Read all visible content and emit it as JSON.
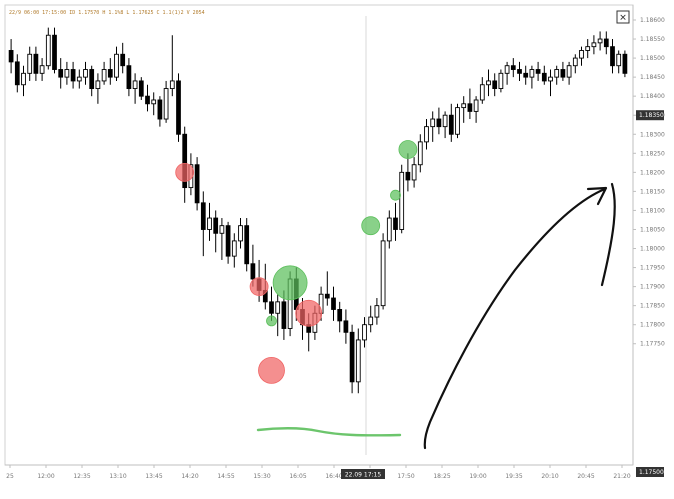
{
  "window": {
    "header_text": "22/9 06:00 17:15:00 ID 1.17570 H 1.1%8 L 1.17625 C 1.1(1)2 V 2054",
    "close_glyph": "✕"
  },
  "chart_data": {
    "type": "candlestick",
    "title": "",
    "xlabel": "",
    "ylabel": "",
    "ylim": [
      1.1745,
      1.186
    ],
    "y_ticks": [
      "1.18600",
      "1.18550",
      "1.18500",
      "1.18450",
      "1.18400",
      "1.18350",
      "1.18300",
      "1.18250",
      "1.18200",
      "1.18150",
      "1.18100",
      "1.18050",
      "1.18000",
      "1.17950",
      "1.17900",
      "1.17850",
      "1.17800",
      "1.17750"
    ],
    "last_price_label": "1.18350",
    "bottom_price_label": "1.17500",
    "x_ticks": [
      "25",
      "12:00",
      "12:35",
      "13:10",
      "13:45",
      "14:20",
      "14:55",
      "15:30",
      "16:05",
      "16:40",
      "17:15",
      "17:50",
      "18:25",
      "19:00",
      "19:35",
      "20:10",
      "20:45",
      "21:20"
    ],
    "cursor_time_label": "22.09 17:15",
    "candles": [
      {
        "o": 1.1852,
        "h": 1.1855,
        "l": 1.1846,
        "c": 1.1849
      },
      {
        "o": 1.1849,
        "h": 1.1851,
        "l": 1.1841,
        "c": 1.1843
      },
      {
        "o": 1.1843,
        "h": 1.1848,
        "l": 1.184,
        "c": 1.1846
      },
      {
        "o": 1.1846,
        "h": 1.1853,
        "l": 1.1844,
        "c": 1.1851
      },
      {
        "o": 1.1851,
        "h": 1.1853,
        "l": 1.1844,
        "c": 1.1846
      },
      {
        "o": 1.1846,
        "h": 1.185,
        "l": 1.1844,
        "c": 1.1848
      },
      {
        "o": 1.1848,
        "h": 1.1858,
        "l": 1.1847,
        "c": 1.1856
      },
      {
        "o": 1.1856,
        "h": 1.1858,
        "l": 1.1846,
        "c": 1.1847
      },
      {
        "o": 1.1847,
        "h": 1.185,
        "l": 1.1842,
        "c": 1.1845
      },
      {
        "o": 1.1845,
        "h": 1.1849,
        "l": 1.1843,
        "c": 1.1847
      },
      {
        "o": 1.1847,
        "h": 1.1849,
        "l": 1.1842,
        "c": 1.1844
      },
      {
        "o": 1.1844,
        "h": 1.1847,
        "l": 1.1842,
        "c": 1.1845
      },
      {
        "o": 1.1845,
        "h": 1.1849,
        "l": 1.1843,
        "c": 1.1847
      },
      {
        "o": 1.1847,
        "h": 1.1848,
        "l": 1.184,
        "c": 1.1842
      },
      {
        "o": 1.1842,
        "h": 1.1846,
        "l": 1.1838,
        "c": 1.1844
      },
      {
        "o": 1.1844,
        "h": 1.1849,
        "l": 1.1843,
        "c": 1.1847
      },
      {
        "o": 1.1847,
        "h": 1.185,
        "l": 1.1843,
        "c": 1.1845
      },
      {
        "o": 1.1845,
        "h": 1.1853,
        "l": 1.1844,
        "c": 1.1851
      },
      {
        "o": 1.1851,
        "h": 1.1854,
        "l": 1.1846,
        "c": 1.1848
      },
      {
        "o": 1.1848,
        "h": 1.185,
        "l": 1.184,
        "c": 1.1842
      },
      {
        "o": 1.1842,
        "h": 1.1846,
        "l": 1.1838,
        "c": 1.1844
      },
      {
        "o": 1.1844,
        "h": 1.1845,
        "l": 1.1839,
        "c": 1.184
      },
      {
        "o": 1.184,
        "h": 1.1843,
        "l": 1.1836,
        "c": 1.1838
      },
      {
        "o": 1.1838,
        "h": 1.1841,
        "l": 1.1835,
        "c": 1.1839
      },
      {
        "o": 1.1839,
        "h": 1.184,
        "l": 1.1832,
        "c": 1.1834
      },
      {
        "o": 1.1834,
        "h": 1.1844,
        "l": 1.1833,
        "c": 1.1842
      },
      {
        "o": 1.1842,
        "h": 1.1856,
        "l": 1.184,
        "c": 1.1844
      },
      {
        "o": 1.1844,
        "h": 1.1846,
        "l": 1.1828,
        "c": 1.183
      },
      {
        "o": 1.183,
        "h": 1.1832,
        "l": 1.1812,
        "c": 1.1816
      },
      {
        "o": 1.1816,
        "h": 1.1825,
        "l": 1.1814,
        "c": 1.1822
      },
      {
        "o": 1.1822,
        "h": 1.1824,
        "l": 1.181,
        "c": 1.1812
      },
      {
        "o": 1.1812,
        "h": 1.1815,
        "l": 1.1798,
        "c": 1.1805
      },
      {
        "o": 1.1805,
        "h": 1.1812,
        "l": 1.1802,
        "c": 1.1808
      },
      {
        "o": 1.1808,
        "h": 1.181,
        "l": 1.1799,
        "c": 1.1804
      },
      {
        "o": 1.1804,
        "h": 1.1808,
        "l": 1.1797,
        "c": 1.1806
      },
      {
        "o": 1.1806,
        "h": 1.1807,
        "l": 1.1796,
        "c": 1.1798
      },
      {
        "o": 1.1798,
        "h": 1.1804,
        "l": 1.1795,
        "c": 1.1802
      },
      {
        "o": 1.1802,
        "h": 1.1808,
        "l": 1.18,
        "c": 1.1806
      },
      {
        "o": 1.1806,
        "h": 1.1808,
        "l": 1.1794,
        "c": 1.1796
      },
      {
        "o": 1.1796,
        "h": 1.1801,
        "l": 1.179,
        "c": 1.1792
      },
      {
        "o": 1.1792,
        "h": 1.1797,
        "l": 1.1786,
        "c": 1.1789
      },
      {
        "o": 1.1789,
        "h": 1.1796,
        "l": 1.1784,
        "c": 1.1786
      },
      {
        "o": 1.1786,
        "h": 1.179,
        "l": 1.1781,
        "c": 1.1783
      },
      {
        "o": 1.1783,
        "h": 1.1788,
        "l": 1.1777,
        "c": 1.1786
      },
      {
        "o": 1.1786,
        "h": 1.1789,
        "l": 1.1776,
        "c": 1.1779
      },
      {
        "o": 1.1779,
        "h": 1.1794,
        "l": 1.1777,
        "c": 1.1792
      },
      {
        "o": 1.1792,
        "h": 1.1795,
        "l": 1.1781,
        "c": 1.1784
      },
      {
        "o": 1.1784,
        "h": 1.1787,
        "l": 1.1776,
        "c": 1.178
      },
      {
        "o": 1.178,
        "h": 1.1783,
        "l": 1.1773,
        "c": 1.1778
      },
      {
        "o": 1.1778,
        "h": 1.1785,
        "l": 1.1776,
        "c": 1.1783
      },
      {
        "o": 1.1783,
        "h": 1.179,
        "l": 1.1781,
        "c": 1.1788
      },
      {
        "o": 1.1788,
        "h": 1.1794,
        "l": 1.1785,
        "c": 1.1787
      },
      {
        "o": 1.1787,
        "h": 1.179,
        "l": 1.1781,
        "c": 1.1784
      },
      {
        "o": 1.1784,
        "h": 1.1786,
        "l": 1.1778,
        "c": 1.1781
      },
      {
        "o": 1.1781,
        "h": 1.1784,
        "l": 1.1775,
        "c": 1.1778
      },
      {
        "o": 1.1778,
        "h": 1.178,
        "l": 1.1762,
        "c": 1.1765
      },
      {
        "o": 1.1765,
        "h": 1.1779,
        "l": 1.1762,
        "c": 1.1776
      },
      {
        "o": 1.1776,
        "h": 1.1782,
        "l": 1.1774,
        "c": 1.178
      },
      {
        "o": 1.178,
        "h": 1.1785,
        "l": 1.1778,
        "c": 1.1782
      },
      {
        "o": 1.1782,
        "h": 1.1787,
        "l": 1.178,
        "c": 1.1785
      },
      {
        "o": 1.1785,
        "h": 1.1804,
        "l": 1.1784,
        "c": 1.1802
      },
      {
        "o": 1.1802,
        "h": 1.181,
        "l": 1.18,
        "c": 1.1808
      },
      {
        "o": 1.1808,
        "h": 1.1812,
        "l": 1.1802,
        "c": 1.1805
      },
      {
        "o": 1.1805,
        "h": 1.1822,
        "l": 1.1804,
        "c": 1.182
      },
      {
        "o": 1.182,
        "h": 1.1825,
        "l": 1.1815,
        "c": 1.1818
      },
      {
        "o": 1.1818,
        "h": 1.1824,
        "l": 1.1816,
        "c": 1.1822
      },
      {
        "o": 1.1822,
        "h": 1.183,
        "l": 1.182,
        "c": 1.1828
      },
      {
        "o": 1.1828,
        "h": 1.1834,
        "l": 1.1826,
        "c": 1.1832
      },
      {
        "o": 1.1832,
        "h": 1.1836,
        "l": 1.1828,
        "c": 1.1834
      },
      {
        "o": 1.1834,
        "h": 1.1837,
        "l": 1.183,
        "c": 1.1832
      },
      {
        "o": 1.1832,
        "h": 1.1836,
        "l": 1.1829,
        "c": 1.1835
      },
      {
        "o": 1.1835,
        "h": 1.1838,
        "l": 1.1828,
        "c": 1.183
      },
      {
        "o": 1.183,
        "h": 1.1838,
        "l": 1.1829,
        "c": 1.1837
      },
      {
        "o": 1.1837,
        "h": 1.184,
        "l": 1.1833,
        "c": 1.1838
      },
      {
        "o": 1.1838,
        "h": 1.1842,
        "l": 1.1834,
        "c": 1.1836
      },
      {
        "o": 1.1836,
        "h": 1.184,
        "l": 1.1833,
        "c": 1.1839
      },
      {
        "o": 1.1839,
        "h": 1.1845,
        "l": 1.1838,
        "c": 1.1843
      },
      {
        "o": 1.1843,
        "h": 1.1847,
        "l": 1.184,
        "c": 1.1844
      },
      {
        "o": 1.1844,
        "h": 1.1846,
        "l": 1.184,
        "c": 1.1842
      },
      {
        "o": 1.1842,
        "h": 1.1847,
        "l": 1.1841,
        "c": 1.1846
      },
      {
        "o": 1.1846,
        "h": 1.1849,
        "l": 1.1843,
        "c": 1.1848
      },
      {
        "o": 1.1848,
        "h": 1.185,
        "l": 1.1845,
        "c": 1.1847
      },
      {
        "o": 1.1847,
        "h": 1.1849,
        "l": 1.1844,
        "c": 1.1846
      },
      {
        "o": 1.1846,
        "h": 1.1848,
        "l": 1.1843,
        "c": 1.1845
      },
      {
        "o": 1.1845,
        "h": 1.1848,
        "l": 1.1842,
        "c": 1.1847
      },
      {
        "o": 1.1847,
        "h": 1.1849,
        "l": 1.1844,
        "c": 1.1846
      },
      {
        "o": 1.1846,
        "h": 1.1848,
        "l": 1.1843,
        "c": 1.1844
      },
      {
        "o": 1.1844,
        "h": 1.1847,
        "l": 1.184,
        "c": 1.1845
      },
      {
        "o": 1.1845,
        "h": 1.1848,
        "l": 1.1843,
        "c": 1.1847
      },
      {
        "o": 1.1847,
        "h": 1.1849,
        "l": 1.1844,
        "c": 1.1845
      },
      {
        "o": 1.1845,
        "h": 1.1849,
        "l": 1.1843,
        "c": 1.1848
      },
      {
        "o": 1.1848,
        "h": 1.1851,
        "l": 1.1846,
        "c": 1.185
      },
      {
        "o": 1.185,
        "h": 1.1853,
        "l": 1.1848,
        "c": 1.1852
      },
      {
        "o": 1.1852,
        "h": 1.1855,
        "l": 1.185,
        "c": 1.1853
      },
      {
        "o": 1.1853,
        "h": 1.1856,
        "l": 1.1851,
        "c": 1.1854
      },
      {
        "o": 1.1854,
        "h": 1.1857,
        "l": 1.1852,
        "c": 1.1855
      },
      {
        "o": 1.1855,
        "h": 1.1857,
        "l": 1.1851,
        "c": 1.1853
      },
      {
        "o": 1.1853,
        "h": 1.1855,
        "l": 1.1846,
        "c": 1.1848
      },
      {
        "o": 1.1848,
        "h": 1.1852,
        "l": 1.1846,
        "c": 1.1851
      },
      {
        "o": 1.1851,
        "h": 1.1852,
        "l": 1.1845,
        "c": 1.1846
      }
    ],
    "annotations": [
      {
        "kind": "circle",
        "color": "red",
        "candle_index": 28,
        "price": 1.182,
        "size": "small"
      },
      {
        "kind": "circle",
        "color": "red",
        "candle_index": 40,
        "price": 1.179,
        "size": "small"
      },
      {
        "kind": "circle",
        "color": "green",
        "candle_index": 42,
        "price": 1.1781,
        "size": "tiny"
      },
      {
        "kind": "circle",
        "color": "green",
        "candle_index": 45,
        "price": 1.1791,
        "size": "large"
      },
      {
        "kind": "circle",
        "color": "red",
        "candle_index": 48,
        "price": 1.1783,
        "size": "medium"
      },
      {
        "kind": "circle",
        "color": "red",
        "candle_index": 42,
        "price": 1.1768,
        "size": "medium"
      },
      {
        "kind": "circle",
        "color": "green",
        "candle_index": 58,
        "price": 1.1806,
        "size": "small"
      },
      {
        "kind": "circle",
        "color": "green",
        "candle_index": 62,
        "price": 1.1814,
        "size": "tiny"
      },
      {
        "kind": "circle",
        "color": "green",
        "candle_index": 64,
        "price": 1.1826,
        "size": "small"
      }
    ],
    "grid": false,
    "legend": "none",
    "colors": {
      "candle": "#000000",
      "red_marker": "#f06464",
      "green_marker": "#5cbf5c",
      "support_line": "#6cc56c",
      "ink": "#111111",
      "axis_text": "#777777",
      "price_box": "#333333"
    }
  }
}
